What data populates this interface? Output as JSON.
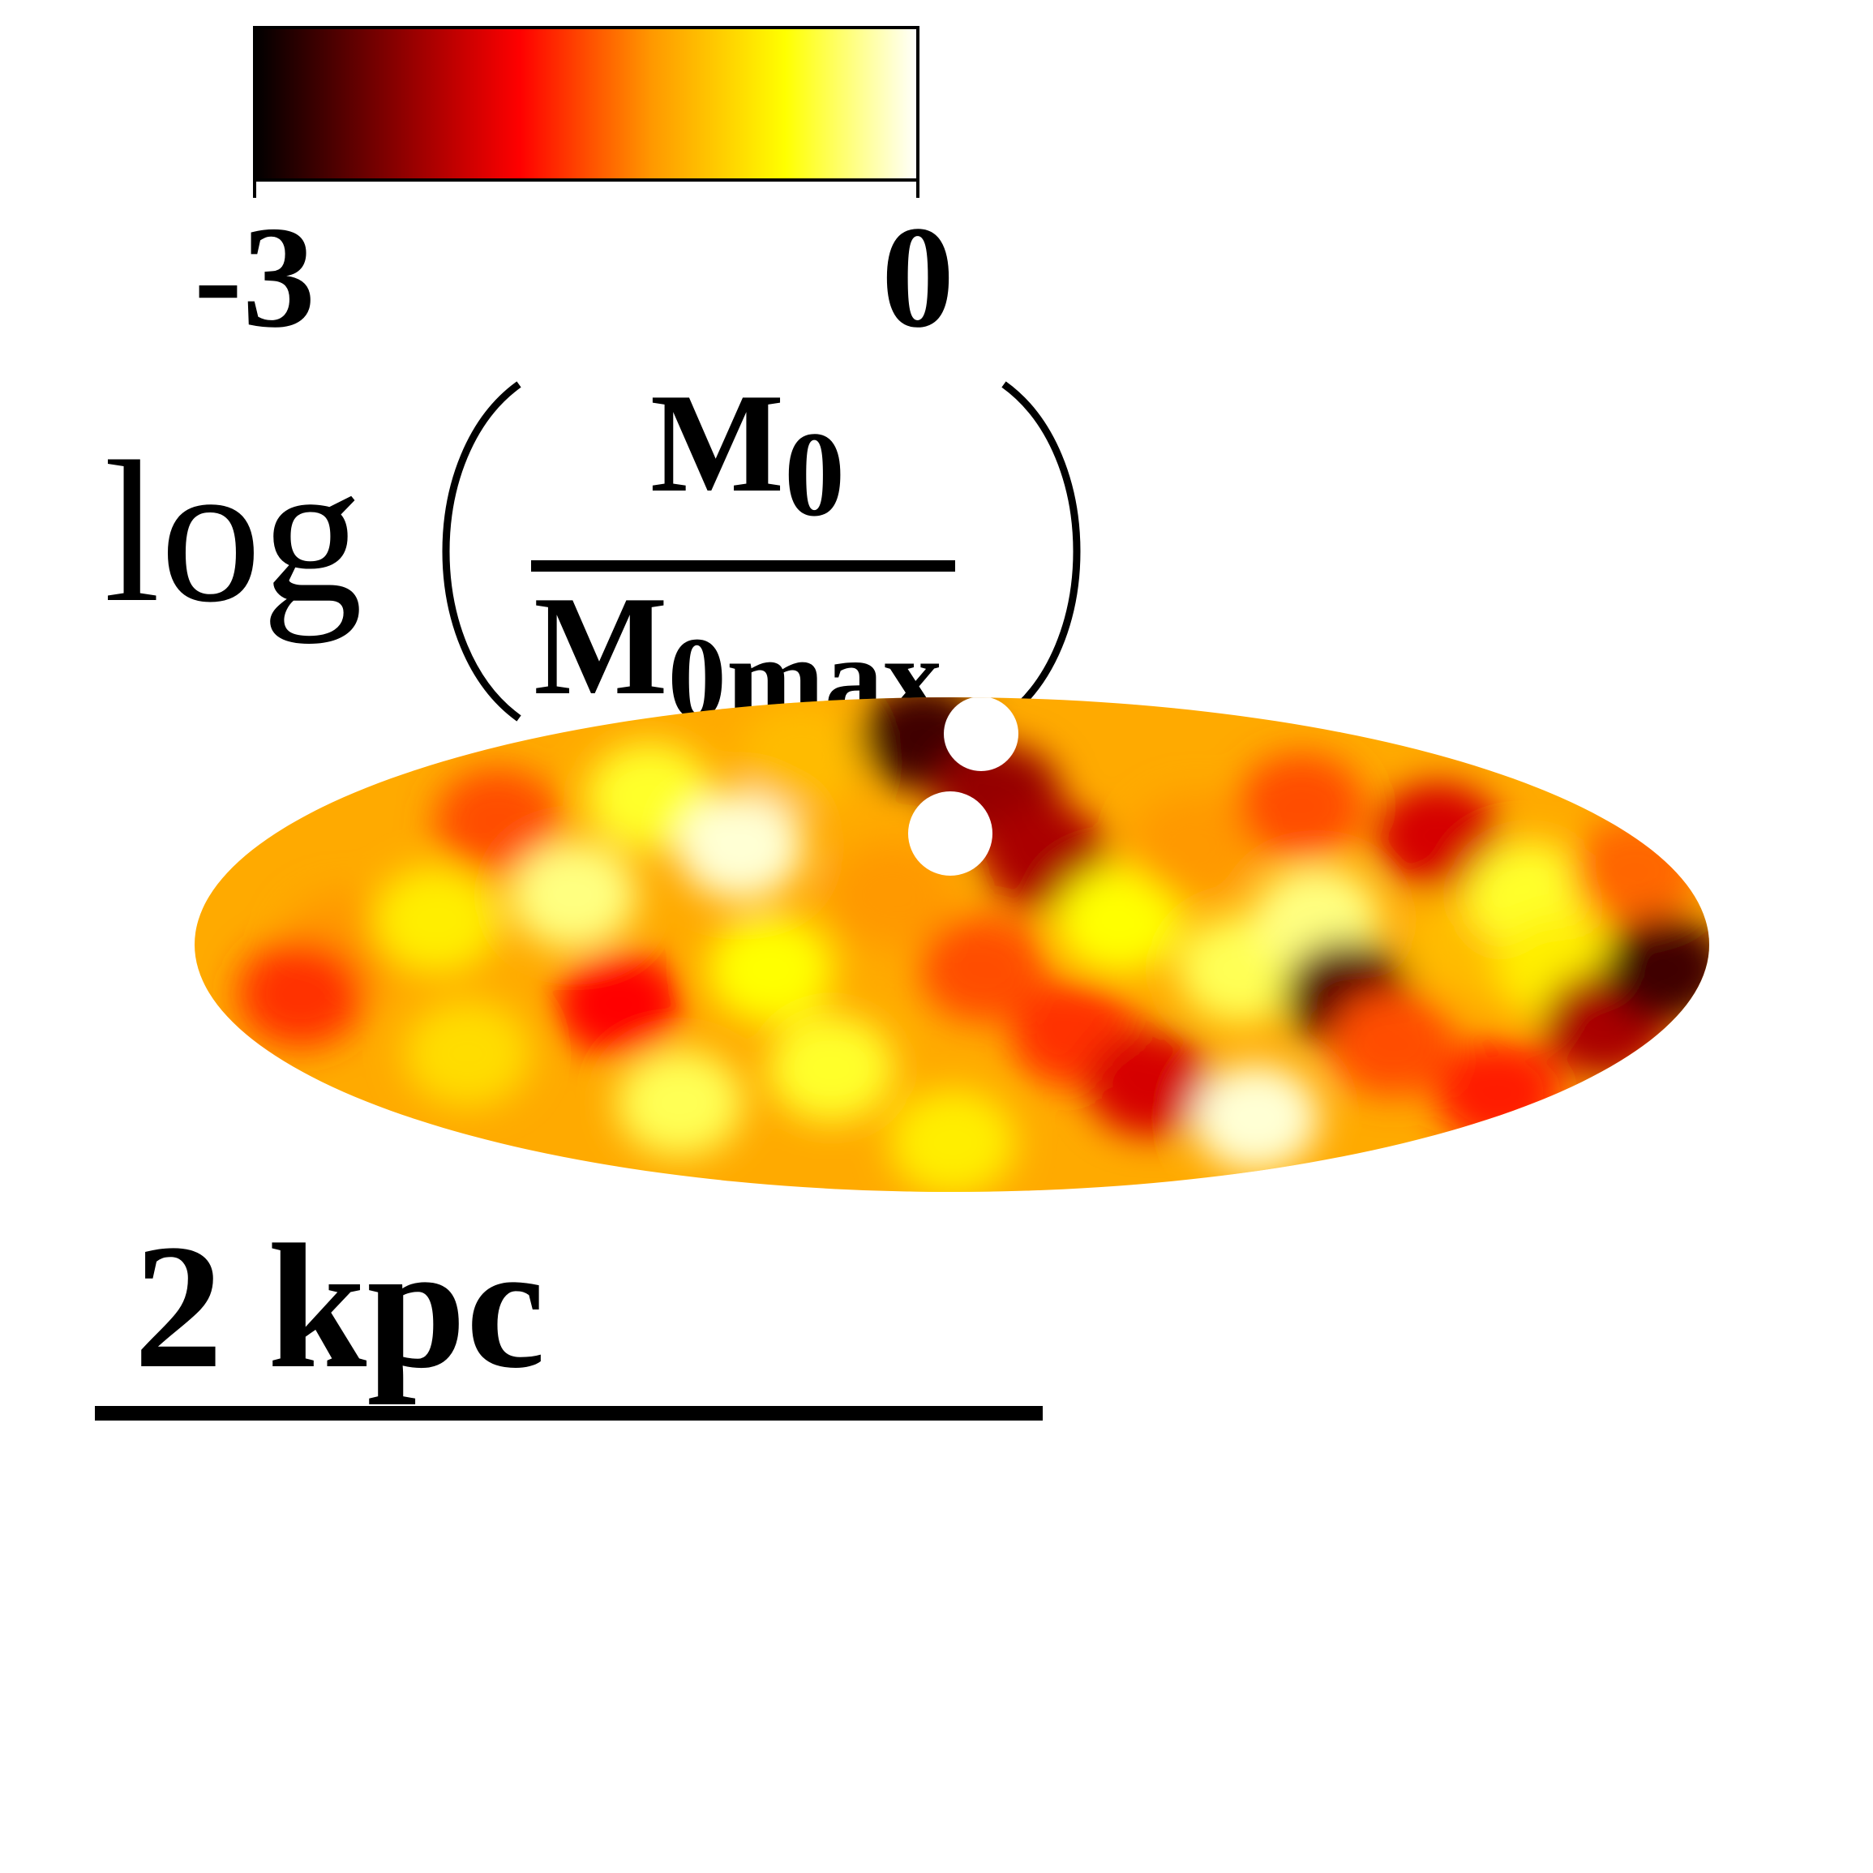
{
  "chart_data": {
    "type": "heatmap",
    "colorbar": {
      "min_label": "-3",
      "max_label": "0",
      "range": [
        -3,
        0
      ],
      "colormap": [
        "#000000",
        "#800000",
        "#ff0000",
        "#ff9900",
        "#ffff00",
        "#ffffff"
      ]
    },
    "label": {
      "prefix": "log",
      "numerator": "M",
      "numerator_sub": "0",
      "denominator": "M",
      "denominator_sub": "0max"
    },
    "scale_bar": {
      "label": "2 kpc",
      "length_kpc": 2
    },
    "map_blobs": [
      {
        "u": 0.1,
        "v": 0.5,
        "level": -1.2
      },
      {
        "u": 0.07,
        "v": 0.6,
        "level": -1.6
      },
      {
        "u": 0.16,
        "v": 0.45,
        "level": -0.7
      },
      {
        "u": 0.18,
        "v": 0.72,
        "level": -0.8
      },
      {
        "u": 0.2,
        "v": 0.25,
        "level": -1.5
      },
      {
        "u": 0.25,
        "v": 0.4,
        "level": -0.3
      },
      {
        "u": 0.28,
        "v": 0.62,
        "level": -1.8
      },
      {
        "u": 0.3,
        "v": 0.2,
        "level": -0.5
      },
      {
        "u": 0.32,
        "v": 0.82,
        "level": -0.4
      },
      {
        "u": 0.36,
        "v": 0.3,
        "level": -0.1
      },
      {
        "u": 0.38,
        "v": 0.55,
        "level": -0.6
      },
      {
        "u": 0.4,
        "v": 0.12,
        "level": -1.0
      },
      {
        "u": 0.42,
        "v": 0.75,
        "level": -0.5
      },
      {
        "u": 0.46,
        "v": 0.4,
        "level": -1.2
      },
      {
        "u": 0.48,
        "v": 0.08,
        "level": -2.7
      },
      {
        "u": 0.5,
        "v": 0.9,
        "level": -0.7
      },
      {
        "u": 0.52,
        "v": 0.55,
        "level": -1.5
      },
      {
        "u": 0.53,
        "v": 0.2,
        "level": -2.3
      },
      {
        "u": 0.56,
        "v": 0.32,
        "level": -2.2
      },
      {
        "u": 0.58,
        "v": 0.68,
        "level": -1.6
      },
      {
        "u": 0.61,
        "v": 0.45,
        "level": -0.6
      },
      {
        "u": 0.63,
        "v": 0.78,
        "level": -2.0
      },
      {
        "u": 0.66,
        "v": 0.3,
        "level": -1.2
      },
      {
        "u": 0.69,
        "v": 0.55,
        "level": -0.4
      },
      {
        "u": 0.7,
        "v": 0.85,
        "level": -0.1
      },
      {
        "u": 0.73,
        "v": 0.22,
        "level": -1.5
      },
      {
        "u": 0.74,
        "v": 0.45,
        "level": -0.3
      },
      {
        "u": 0.76,
        "v": 0.6,
        "level": -2.6
      },
      {
        "u": 0.79,
        "v": 0.7,
        "level": -1.5
      },
      {
        "u": 0.82,
        "v": 0.28,
        "level": -2.0
      },
      {
        "u": 0.84,
        "v": 0.5,
        "level": -1.0
      },
      {
        "u": 0.86,
        "v": 0.8,
        "level": -1.7
      },
      {
        "u": 0.88,
        "v": 0.4,
        "level": -0.5
      },
      {
        "u": 0.9,
        "v": 0.55,
        "level": -0.7
      },
      {
        "u": 0.93,
        "v": 0.66,
        "level": -2.2
      },
      {
        "u": 0.95,
        "v": 0.35,
        "level": -1.4
      },
      {
        "u": 0.97,
        "v": 0.55,
        "level": -2.7
      }
    ]
  }
}
